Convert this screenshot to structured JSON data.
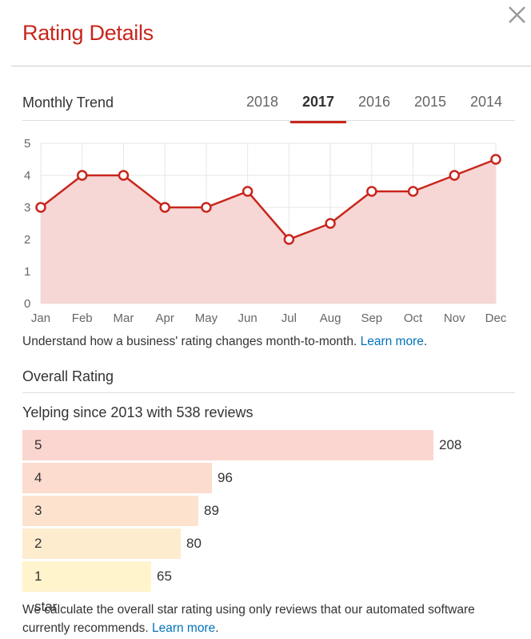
{
  "dialog": {
    "title": "Rating Details"
  },
  "trend": {
    "heading": "Monthly Trend",
    "tabs": [
      "2018",
      "2017",
      "2016",
      "2015",
      "2014"
    ],
    "active_tab": "2017",
    "note": "Understand how a business' rating changes month-to-month.",
    "learn_more": "Learn more",
    "note_end": "."
  },
  "chart_data": {
    "type": "area",
    "categories": [
      "Jan",
      "Feb",
      "Mar",
      "Apr",
      "May",
      "Jun",
      "Jul",
      "Aug",
      "Sep",
      "Oct",
      "Nov",
      "Dec"
    ],
    "values": [
      3,
      4,
      4,
      3,
      3,
      3.5,
      2,
      2.5,
      3.5,
      3.5,
      4,
      4.5
    ],
    "yticks": [
      0,
      1,
      2,
      3,
      4,
      5
    ],
    "ylim": [
      0,
      5
    ],
    "grid": true,
    "line_color": "#c8261d",
    "fill_color": "#f6d7d5",
    "title": "",
    "xlabel": "",
    "ylabel": ""
  },
  "overall": {
    "heading": "Overall Rating",
    "summary": "Yelping since 2013 with 538 reviews",
    "bars": [
      {
        "label": "5 stars",
        "count": "208",
        "value": 208,
        "color": "#fbd6d0"
      },
      {
        "label": "4 stars",
        "count": "96",
        "value": 96,
        "color": "#fcdccf"
      },
      {
        "label": "3 stars",
        "count": "89",
        "value": 89,
        "color": "#fde3cd"
      },
      {
        "label": "2 stars",
        "count": "80",
        "value": 80,
        "color": "#feeccf"
      },
      {
        "label": "1 star",
        "count": "65",
        "value": 65,
        "color": "#fff4cb"
      }
    ],
    "note_line1": "We calculate the overall star rating using only reviews that our automated software",
    "note_line2": "currently recommends.",
    "learn_more": "Learn more",
    "note_end": "."
  }
}
